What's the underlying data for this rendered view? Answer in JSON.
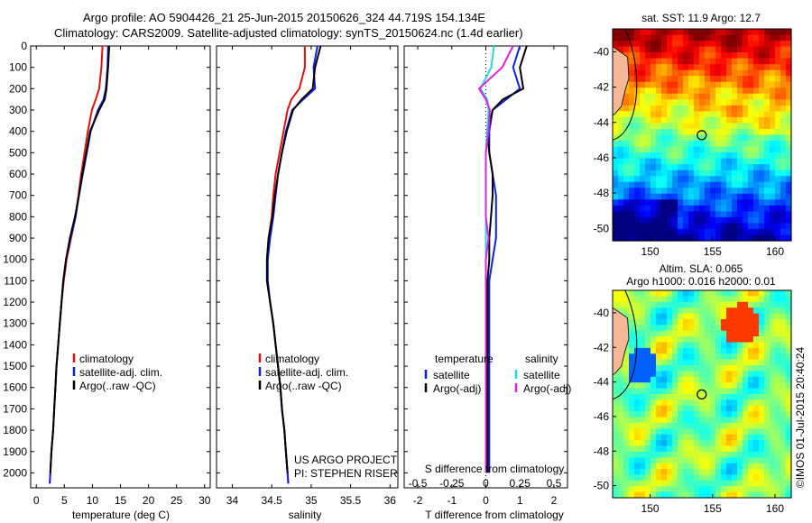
{
  "header": {
    "line1": "Argo profile: AO 5904426_21 25-Jun-2015 20150626_324 44.719S 154.134E",
    "line2": "Climatology: CARS2009. Satellite-adjusted climatology: synTS_20150624.nc (1.4d earlier)"
  },
  "colors": {
    "climatology": "#e01010",
    "satellite": "#1020e0",
    "argo": "#000000",
    "satellite_salinity": "#20d8e0",
    "argo_salinity": "#e020e0"
  },
  "stamp": "©IMOS 01-Jul-2015 20:40:24",
  "chart_data": [
    {
      "type": "line",
      "name": "temperature-profile",
      "xlabel": "temperature (deg C)",
      "ylabel": "",
      "xlim": [
        -1,
        31
      ],
      "ylim": [
        2070,
        0
      ],
      "xticks": [
        0,
        5,
        10,
        15,
        20,
        25,
        30
      ],
      "yticks": [
        0,
        100,
        200,
        300,
        400,
        500,
        600,
        700,
        800,
        900,
        1000,
        1100,
        1200,
        1300,
        1400,
        1500,
        1600,
        1700,
        1800,
        1900,
        2000
      ],
      "legend": [
        "climatology",
        "satellite-adj. clim.",
        "Argo(..raw -QC)"
      ],
      "series": [
        {
          "name": "climatology",
          "color_key": "climatology",
          "x": [
            11.8,
            11.6,
            11.2,
            10.6,
            9.9,
            9.2,
            8.6,
            8.0,
            7.5,
            7.0,
            6.2,
            5.4,
            4.9,
            4.5,
            4.2,
            3.9,
            3.6,
            3.4,
            3.2,
            3.0,
            2.7,
            2.5,
            2.4
          ],
          "y": [
            0,
            100,
            200,
            250,
            300,
            400,
            500,
            600,
            700,
            800,
            900,
            1000,
            1100,
            1200,
            1300,
            1400,
            1500,
            1600,
            1700,
            1800,
            1900,
            2000,
            2050
          ]
        },
        {
          "name": "satellite-adj. clim.",
          "color_key": "satellite",
          "x": [
            12.8,
            12.7,
            12.4,
            12.0,
            11.0,
            9.7,
            9.0,
            8.3,
            7.6,
            7.0,
            6.1,
            5.3,
            4.8,
            4.5,
            4.2,
            3.9,
            3.6,
            3.4,
            3.2,
            3.0,
            2.7,
            2.5,
            2.4
          ],
          "y": [
            0,
            100,
            200,
            250,
            300,
            400,
            500,
            600,
            700,
            800,
            900,
            1000,
            1100,
            1200,
            1300,
            1400,
            1500,
            1600,
            1700,
            1800,
            1900,
            2000,
            2050
          ]
        },
        {
          "name": "Argo(..raw -QC)",
          "color_key": "argo",
          "x": [
            13.0,
            12.8,
            12.5,
            12.2,
            11.2,
            9.6,
            8.9,
            8.2,
            7.6,
            6.9,
            6.0,
            5.3,
            4.8,
            4.5,
            4.2,
            3.9,
            3.6,
            3.4,
            3.2,
            3.0,
            2.7,
            2.5
          ],
          "y": [
            0,
            100,
            200,
            250,
            300,
            400,
            500,
            600,
            700,
            800,
            900,
            1000,
            1100,
            1200,
            1300,
            1400,
            1500,
            1600,
            1700,
            1800,
            1900,
            2000
          ]
        }
      ]
    },
    {
      "type": "line",
      "name": "salinity-profile",
      "xlabel": "salinity",
      "xlim": [
        33.8,
        36.1
      ],
      "ylim": [
        2070,
        0
      ],
      "xticks": [
        34,
        34.5,
        35,
        35.5,
        36
      ],
      "legend": [
        "climatology",
        "satellite-adj. clim.",
        "Argo(..raw -QC)"
      ],
      "annotation": [
        "US ARGO PROJECT",
        "PI: STEPHEN RISER"
      ],
      "series": [
        {
          "name": "climatology",
          "color_key": "climatology",
          "x": [
            34.92,
            34.92,
            34.85,
            34.75,
            34.7,
            34.65,
            34.6,
            34.55,
            34.52,
            34.5,
            34.46,
            34.44,
            34.44,
            34.48,
            34.52,
            34.55,
            34.58,
            34.61,
            34.63,
            34.66,
            34.68,
            34.7,
            34.71
          ],
          "y": [
            0,
            100,
            200,
            250,
            300,
            400,
            500,
            600,
            700,
            800,
            900,
            1000,
            1100,
            1200,
            1300,
            1400,
            1500,
            1600,
            1700,
            1800,
            1900,
            2000,
            2050
          ]
        },
        {
          "name": "satellite-adj. clim.",
          "color_key": "satellite",
          "x": [
            35.08,
            35.03,
            35.05,
            34.9,
            34.76,
            34.68,
            34.63,
            34.58,
            34.55,
            34.52,
            34.48,
            34.45,
            34.45,
            34.48,
            34.52,
            34.55,
            34.58,
            34.61,
            34.63,
            34.66,
            34.68,
            34.7,
            34.71
          ],
          "y": [
            0,
            100,
            200,
            250,
            300,
            400,
            500,
            600,
            700,
            800,
            900,
            1000,
            1100,
            1200,
            1300,
            1400,
            1500,
            1600,
            1700,
            1800,
            1900,
            2000,
            2050
          ]
        },
        {
          "name": "Argo(..raw -QC)",
          "color_key": "argo",
          "x": [
            35.12,
            35.05,
            35.02,
            34.88,
            34.77,
            34.69,
            34.63,
            34.58,
            34.54,
            34.51,
            34.46,
            34.44,
            34.44,
            34.48,
            34.52,
            34.55,
            34.58,
            34.61,
            34.63,
            34.66,
            34.68,
            34.7
          ],
          "y": [
            0,
            100,
            200,
            250,
            300,
            400,
            500,
            600,
            700,
            800,
            900,
            1000,
            1100,
            1200,
            1300,
            1400,
            1500,
            1600,
            1700,
            1800,
            1900,
            2000
          ]
        }
      ]
    },
    {
      "type": "line",
      "name": "difference-profile",
      "xlabel": "T difference from climatology",
      "xlabel_top": "S difference from climatology",
      "xlim": [
        -2.4,
        2.4
      ],
      "ylim": [
        2070,
        0
      ],
      "xticks": [
        -2,
        -1,
        0,
        1,
        2
      ],
      "xtick_labels": [
        "-2",
        "-1",
        "0",
        "1",
        "2"
      ],
      "xticks_s": [
        -0.5,
        -0.25,
        0,
        0.25,
        0.5
      ],
      "xtick_labels_s": [
        "-0.5",
        "-0.25",
        "0",
        "0.25",
        "0.5"
      ],
      "legend_titles": [
        "temperature",
        "salinity"
      ],
      "legend": [
        "satellite",
        "Argo(-adj)",
        "satellite",
        "Argo(-adj)"
      ],
      "series": [
        {
          "name": "satellite",
          "group": "temperature",
          "color_key": "satellite",
          "x": [
            1.0,
            0.8,
            1.0,
            0.6,
            0.2,
            0.1,
            0.1,
            0.2,
            0.3,
            0.3,
            0.3,
            0.2,
            0.1,
            0.1,
            0.1,
            0.1,
            0.1,
            0.1,
            0.1,
            0.1,
            0.1,
            0.1
          ],
          "y": [
            0,
            100,
            200,
            250,
            300,
            400,
            500,
            600,
            700,
            800,
            900,
            1000,
            1100,
            1200,
            1300,
            1400,
            1500,
            1600,
            1700,
            1800,
            1900,
            2000
          ]
        },
        {
          "name": "Argo(-adj)",
          "group": "temperature",
          "color_key": "argo",
          "x": [
            1.2,
            1.0,
            1.1,
            0.5,
            0.2,
            0.05,
            0.1,
            0.2,
            0.2,
            0.15,
            0.1,
            0.1,
            0.05,
            0.05,
            0.05,
            0.05,
            0.05,
            0.05,
            0.05,
            0.05,
            0.05,
            0.05
          ],
          "y": [
            0,
            100,
            200,
            250,
            300,
            400,
            500,
            600,
            700,
            800,
            900,
            1000,
            1100,
            1200,
            1300,
            1400,
            1500,
            1600,
            1700,
            1800,
            1900,
            2000
          ]
        },
        {
          "name": "satellite",
          "group": "salinity",
          "color_key": "satellite_salinity",
          "x": [
            0.06,
            0.04,
            -0.04,
            0.01,
            0.02,
            0.01,
            0.0,
            0.0,
            0.0,
            0.0,
            0.0,
            0.0,
            0.0,
            0.0,
            0.0,
            0.0,
            0.0,
            0.0,
            0.0,
            0.0,
            0.0,
            0.0
          ],
          "y": [
            0,
            100,
            200,
            250,
            300,
            400,
            500,
            600,
            700,
            800,
            900,
            1000,
            1100,
            1200,
            1300,
            1400,
            1500,
            1600,
            1700,
            1800,
            1900,
            2000
          ]
        },
        {
          "name": "Argo(-adj)",
          "group": "salinity",
          "color_key": "argo_salinity",
          "x": [
            0.2,
            0.12,
            -0.05,
            0.0,
            0.03,
            0.02,
            0.0,
            0.0,
            0.0,
            0.0,
            0.02,
            0.0,
            0.0,
            0.0,
            0.0,
            0.0,
            0.0,
            0.0,
            0.0,
            0.0,
            0.0,
            0.0
          ],
          "y": [
            0,
            100,
            200,
            250,
            300,
            400,
            500,
            600,
            700,
            800,
            900,
            1000,
            1100,
            1200,
            1300,
            1400,
            1500,
            1600,
            1700,
            1800,
            1900,
            2000
          ]
        }
      ]
    },
    {
      "type": "heatmap",
      "name": "sst-map",
      "title": "sat. SST: 11.9 Argo: 12.7",
      "xlim": [
        147,
        161.3
      ],
      "ylim": [
        -50.7,
        -38.7
      ],
      "xticks": [
        150,
        155,
        160
      ],
      "yticks": [
        -40,
        -42,
        -44,
        -46,
        -48,
        -50
      ],
      "marker": {
        "lon": 154.134,
        "lat": -44.719
      }
    },
    {
      "type": "heatmap",
      "name": "sla-map",
      "title": "Altim. SLA: 0.065",
      "subtitle": "Argo h1000: 0.016 h2000: 0.01",
      "xlim": [
        147,
        161.3
      ],
      "ylim": [
        -50.7,
        -38.7
      ],
      "xticks": [
        150,
        155,
        160
      ],
      "yticks": [
        -40,
        -42,
        -44,
        -46,
        -48,
        -50
      ],
      "marker": {
        "lon": 154.134,
        "lat": -44.719
      }
    }
  ]
}
